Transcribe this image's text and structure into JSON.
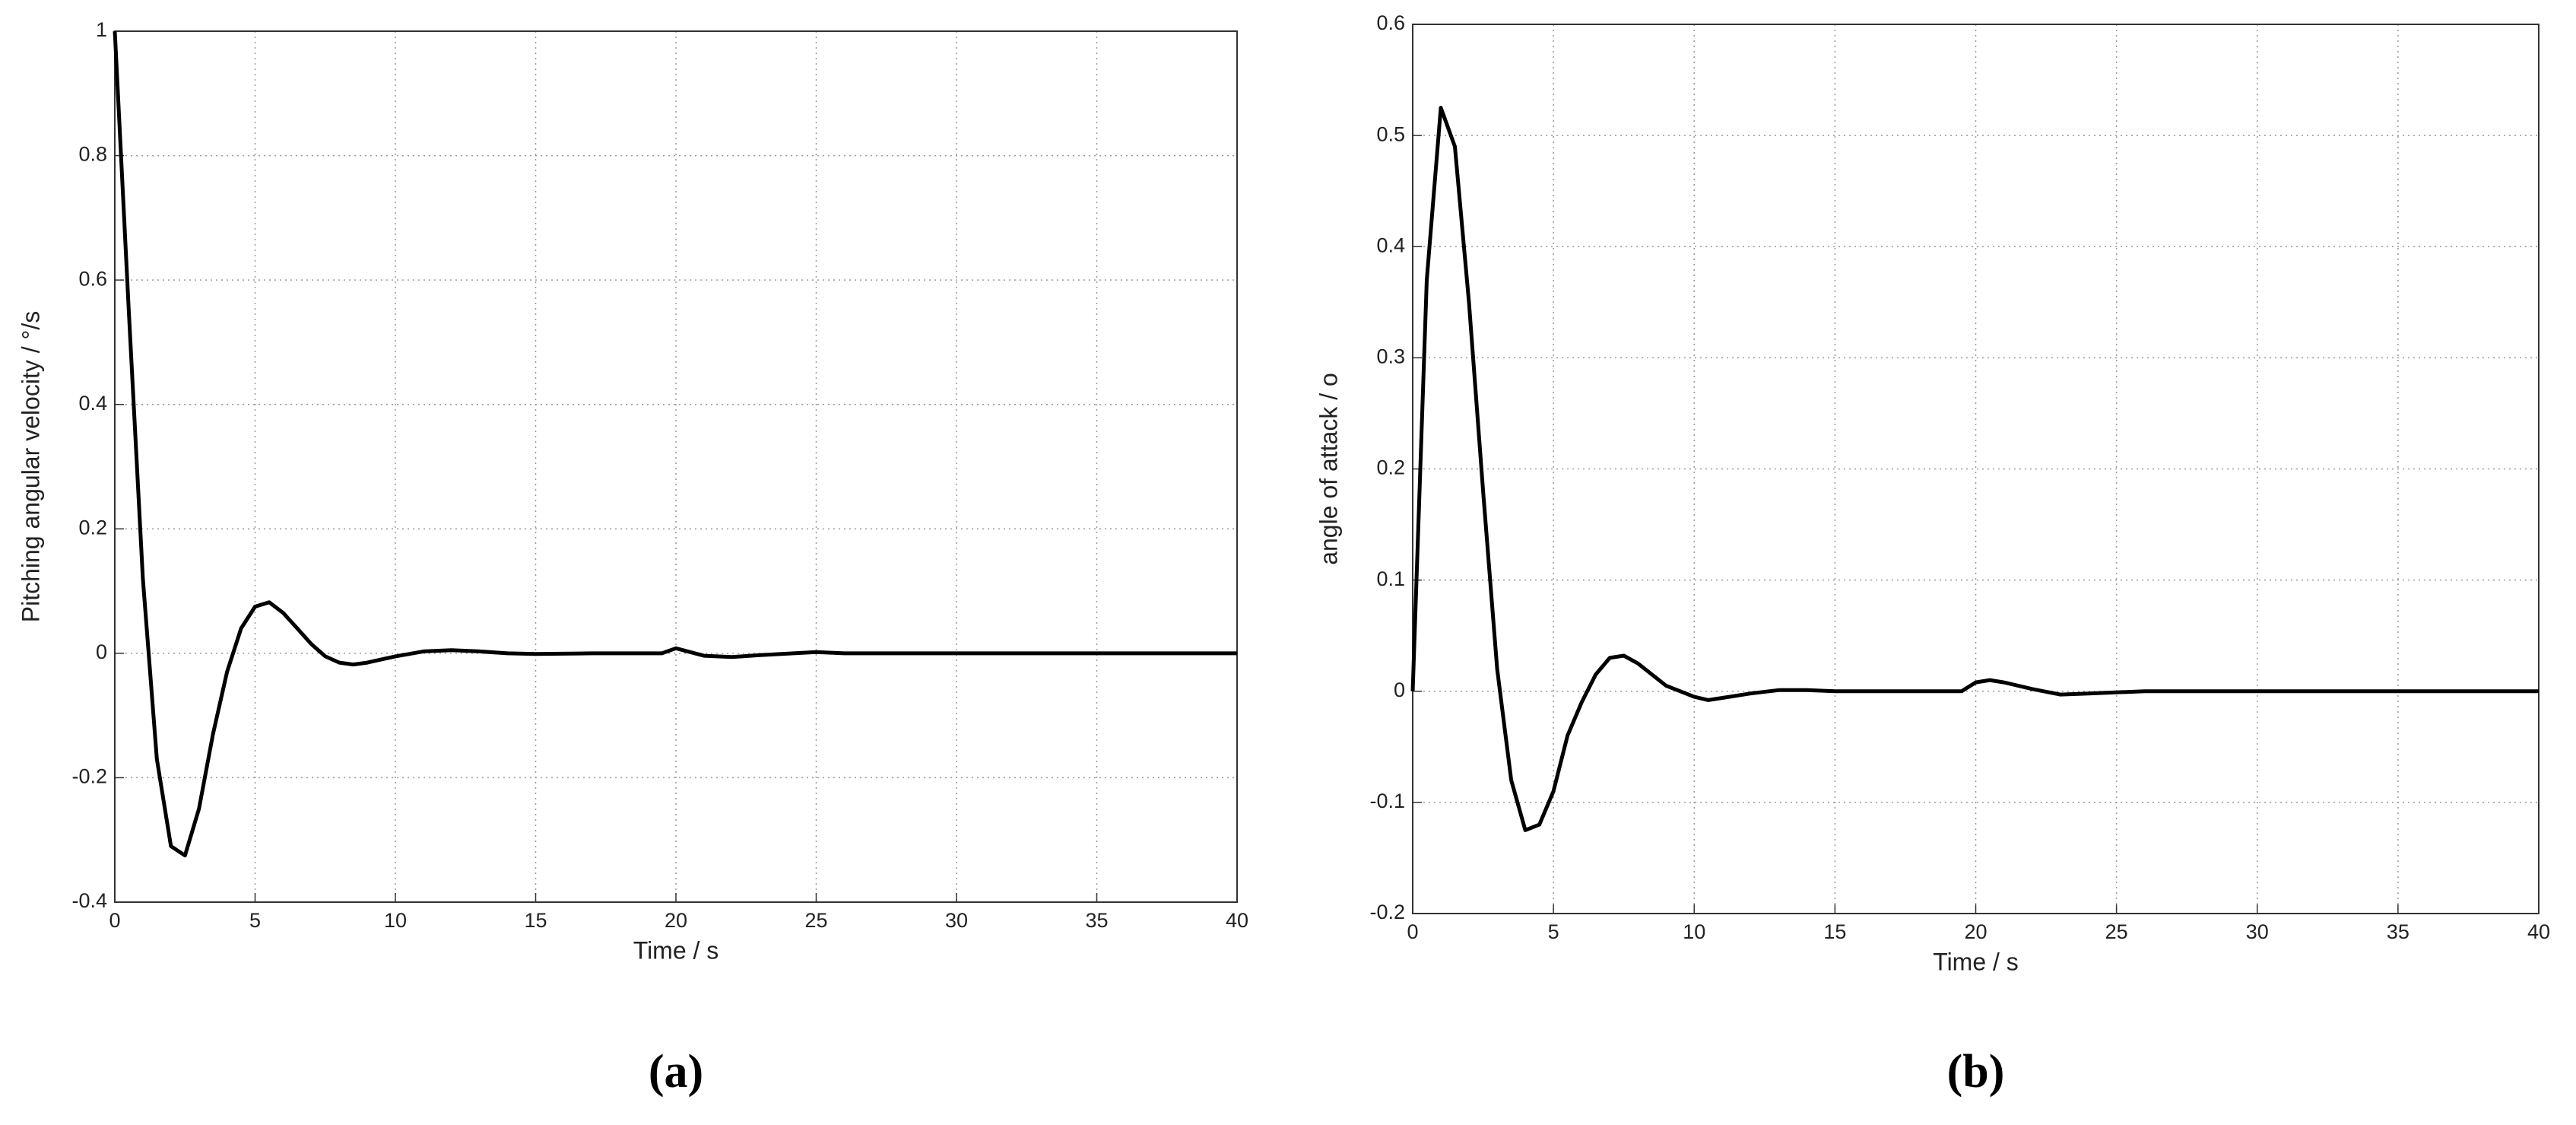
{
  "chart_data": [
    {
      "type": "line",
      "caption": "(a)",
      "x_label": "Time / s",
      "y_label": "Pitching angular velocity / °/s",
      "color": "#000000",
      "grid": true,
      "x": [
        0,
        0.5,
        1,
        1.5,
        2,
        2.5,
        3,
        3.5,
        4,
        4.5,
        5,
        5.5,
        6,
        6.5,
        7,
        7.5,
        8,
        8.5,
        9,
        10,
        11,
        12,
        13,
        14,
        15,
        17,
        19.5,
        20,
        20.5,
        21,
        22,
        23,
        25,
        26,
        30,
        40
      ],
      "values": [
        1.0,
        0.55,
        0.12,
        -0.17,
        -0.31,
        -0.325,
        -0.25,
        -0.13,
        -0.03,
        0.04,
        0.075,
        0.082,
        0.065,
        0.04,
        0.015,
        -0.005,
        -0.015,
        -0.018,
        -0.015,
        -0.005,
        0.003,
        0.005,
        0.003,
        0.0,
        -0.001,
        0,
        0,
        0.008,
        0.002,
        -0.004,
        -0.006,
        -0.003,
        0.002,
        0,
        0,
        0
      ],
      "xlim": [
        0,
        40
      ],
      "xticks": [
        0,
        5,
        10,
        15,
        20,
        25,
        30,
        35,
        40
      ],
      "ylim": [
        -0.4,
        1
      ],
      "yticks": [
        -0.4,
        -0.2,
        0,
        0.2,
        0.4,
        0.6,
        0.8,
        1
      ]
    },
    {
      "type": "line",
      "caption": "(b)",
      "x_label": "Time / s",
      "y_label": "angle of attack / ο",
      "color": "#000000",
      "grid": true,
      "x": [
        0,
        0.5,
        1,
        1.5,
        2,
        2.5,
        3,
        3.5,
        4,
        4.5,
        5,
        5.5,
        6,
        6.5,
        7,
        7.5,
        8,
        8.5,
        9,
        10,
        10.5,
        11,
        12,
        13,
        14,
        15,
        19.5,
        20,
        20.5,
        21,
        22,
        23,
        24,
        26,
        40
      ],
      "values": [
        0,
        0.37,
        0.525,
        0.49,
        0.35,
        0.18,
        0.02,
        -0.08,
        -0.125,
        -0.12,
        -0.09,
        -0.04,
        -0.01,
        0.015,
        0.03,
        0.032,
        0.025,
        0.015,
        0.005,
        -0.005,
        -0.008,
        -0.006,
        -0.002,
        0.001,
        0.001,
        0,
        0,
        0.008,
        0.01,
        0.008,
        0.002,
        -0.003,
        -0.002,
        0,
        0
      ],
      "xlim": [
        0,
        40
      ],
      "xticks": [
        0,
        5,
        10,
        15,
        20,
        25,
        30,
        35,
        40
      ],
      "ylim": [
        -0.2,
        0.6
      ],
      "yticks": [
        -0.2,
        -0.1,
        0,
        0.1,
        0.2,
        0.3,
        0.4,
        0.5,
        0.6
      ]
    }
  ]
}
